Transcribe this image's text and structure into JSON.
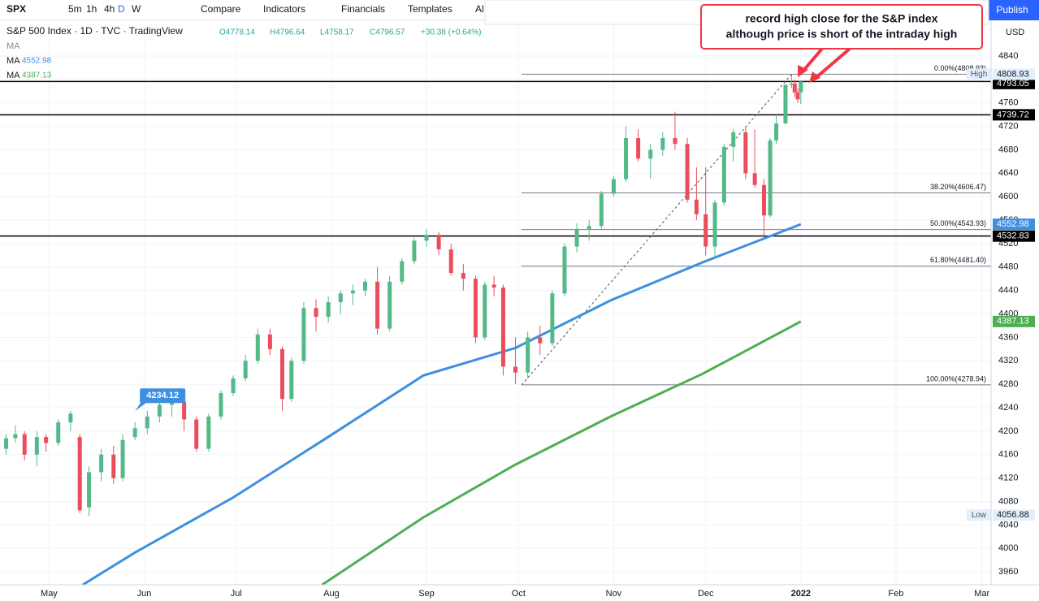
{
  "toolbar": {
    "symbol": "SPX",
    "intervals": [
      "5m",
      "1h",
      "4h",
      "D",
      "W"
    ],
    "buttons": [
      "Compare",
      "Indicators",
      "Financials",
      "Templates",
      "Al"
    ],
    "publish": "Publish",
    "currency": "USD"
  },
  "legend": {
    "title": "S&P 500 Index · 1D · TVC · TradingView",
    "ohlc": [
      "O4778.14",
      "H4796.64",
      "L4758.17",
      "C4796.57",
      "+30.38 (+0.64%)"
    ],
    "first_ma": "MA"
  },
  "annotation": [
    "record high close for the S&P index",
    "although price is short of the intraday high"
  ],
  "chart_data": {
    "type": "candlestick",
    "up_color": "#53b987",
    "down_color": "#eb4d5c",
    "x": [
      106,
      109,
      112,
      116,
      119,
      123,
      127,
      130,
      133,
      137,
      141,
      144,
      148,
      152,
      156,
      160,
      164,
      168,
      172,
      176,
      180,
      184,
      188,
      192,
      196,
      199,
      203,
      207,
      211,
      215,
      219,
      223,
      227,
      231,
      235,
      239,
      243,
      247,
      251,
      255,
      259,
      262,
      265,
      268,
      272,
      276,
      280,
      284,
      288,
      292,
      296,
      300,
      304,
      308,
      312,
      316,
      320,
      324,
      328,
      331,
      334,
      337,
      340,
      343,
      347,
      350,
      353,
      355,
      357,
      360,
      362,
      363,
      364,
      365
    ],
    "open": [
      4170,
      4188,
      4195,
      4160,
      4190,
      4180,
      4215,
      4190,
      4070,
      4130,
      4160,
      4120,
      4190,
      4205,
      4225,
      4245,
      4250,
      4220,
      4170,
      4225,
      4265,
      4290,
      4320,
      4365,
      4340,
      4255,
      4320,
      4410,
      4395,
      4420,
      4435,
      4440,
      4455,
      4375,
      4455,
      4490,
      4525,
      4535,
      4510,
      4470,
      4460,
      4360,
      4450,
      4445,
      4310,
      4300,
      4360,
      4350,
      4435,
      4515,
      4545,
      4550,
      4605,
      4630,
      4700,
      4665,
      4680,
      4700,
      4690,
      4595,
      4570,
      4515,
      4590,
      4685,
      4710,
      4640,
      4620,
      4568,
      4696,
      4725,
      4791,
      4793,
      4778,
      4778.14
    ],
    "high": [
      4195,
      4210,
      4200,
      4200,
      4195,
      4220,
      4235,
      4195,
      4140,
      4170,
      4175,
      4195,
      4215,
      4235,
      4250,
      4260,
      4255,
      4225,
      4230,
      4270,
      4295,
      4330,
      4375,
      4375,
      4345,
      4325,
      4420,
      4425,
      4430,
      4440,
      4450,
      4460,
      4480,
      4465,
      4495,
      4530,
      4545,
      4540,
      4520,
      4485,
      4465,
      4455,
      4465,
      4450,
      4360,
      4370,
      4380,
      4440,
      4520,
      4555,
      4560,
      4610,
      4635,
      4720,
      4715,
      4690,
      4710,
      4745,
      4700,
      4650,
      4650,
      4595,
      4690,
      4715,
      4720,
      4715,
      4630,
      4700,
      4740,
      4792,
      4808,
      4800,
      4785,
      4796.64
    ],
    "low": [
      4160,
      4180,
      4150,
      4140,
      4165,
      4175,
      4200,
      4060,
      4055,
      4115,
      4110,
      4115,
      4185,
      4195,
      4215,
      4225,
      4200,
      4165,
      4165,
      4220,
      4260,
      4285,
      4315,
      4330,
      4235,
      4250,
      4315,
      4370,
      4385,
      4400,
      4415,
      4430,
      4365,
      4370,
      4450,
      4485,
      4515,
      4500,
      4465,
      4440,
      4350,
      4355,
      4430,
      4295,
      4280,
      4290,
      4330,
      4345,
      4430,
      4505,
      4525,
      4545,
      4600,
      4625,
      4660,
      4630,
      4670,
      4680,
      4590,
      4560,
      4500,
      4495,
      4585,
      4660,
      4630,
      4615,
      4530,
      4565,
      4690,
      4724,
      4785,
      4770,
      4760,
      4758.17
    ],
    "close": [
      4188,
      4195,
      4160,
      4190,
      4180,
      4215,
      4230,
      4065,
      4130,
      4160,
      4120,
      4185,
      4205,
      4225,
      4245,
      4250,
      4220,
      4170,
      4225,
      4265,
      4290,
      4320,
      4365,
      4340,
      4255,
      4320,
      4410,
      4395,
      4420,
      4435,
      4440,
      4455,
      4375,
      4455,
      4490,
      4525,
      4535,
      4510,
      4470,
      4460,
      4360,
      4450,
      4445,
      4310,
      4300,
      4360,
      4350,
      4435,
      4515,
      4545,
      4550,
      4605,
      4630,
      4700,
      4665,
      4680,
      4700,
      4690,
      4595,
      4570,
      4515,
      4590,
      4685,
      4710,
      4640,
      4620,
      4568,
      4696,
      4725,
      4791,
      4793,
      4778,
      4766,
      4796.57
    ],
    "series": [
      {
        "name": "MA",
        "color": "#3d8fe0",
        "x": [
          131,
          148,
          180,
          210,
          242,
          272,
          303,
          333,
          365
        ],
        "values": [
          3938,
          3993,
          4087,
          4187,
          4295,
          4342,
          4423,
          4488,
          4552.98
        ]
      },
      {
        "name": "MA",
        "color": "#4caf50",
        "x": [
          209,
          242,
          272,
          303,
          333,
          365
        ],
        "values": [
          3938,
          4053,
          4143,
          4225,
          4298,
          4387.13
        ]
      }
    ],
    "hlines": [
      {
        "value": 4796.57,
        "badge_color": "#53b987",
        "show_line": true
      },
      {
        "value": 4793.05,
        "badge_color": "#000000",
        "show_line": false
      },
      {
        "value": 4739.72,
        "badge_color": "#000000",
        "show_line": true
      },
      {
        "value": 4532.83,
        "badge_color": "#000000",
        "show_line": true
      }
    ],
    "fib": {
      "x0": 274,
      "levels": [
        {
          "label": "0.00%(4808.93)",
          "value": 4808.93
        },
        {
          "label": "38.20%(4606.47)",
          "value": 4606.47
        },
        {
          "label": "50.00%(4543.93)",
          "value": 4543.93
        },
        {
          "label": "61.80%(4481.40)",
          "value": 4481.4
        },
        {
          "label": "100.00%(4278.94)",
          "value": 4278.94
        }
      ]
    },
    "trendline": {
      "x": [
        274,
        362
      ],
      "values": [
        4278.94,
        4808.93
      ]
    },
    "extremes": [
      {
        "label": "High",
        "value": 4808.93
      },
      {
        "label": "Low",
        "value": 4056.88
      }
    ],
    "callout": {
      "x": 148,
      "value": 4234.12
    },
    "xlim": [
      104,
      427
    ],
    "ylim": [
      3938,
      4894
    ],
    "xticks": [
      {
        "value": 120,
        "label": "May"
      },
      {
        "value": 151,
        "label": "Jun"
      },
      {
        "value": 181,
        "label": "Jul"
      },
      {
        "value": 212,
        "label": "Aug"
      },
      {
        "value": 243,
        "label": "Sep"
      },
      {
        "value": 273,
        "label": "Oct"
      },
      {
        "value": 304,
        "label": "Nov"
      },
      {
        "value": 334,
        "label": "Dec"
      },
      {
        "value": 365,
        "label": "2022"
      },
      {
        "value": 396,
        "label": "Feb"
      },
      {
        "value": 424,
        "label": "Mar"
      }
    ],
    "yticks": [
      3960,
      4000,
      4040,
      4080,
      4120,
      4160,
      4200,
      4240,
      4280,
      4320,
      4360,
      4400,
      4440,
      4480,
      4520,
      4560,
      4600,
      4640,
      4680,
      4720,
      4760,
      4800,
      4840
    ],
    "grid": true
  }
}
